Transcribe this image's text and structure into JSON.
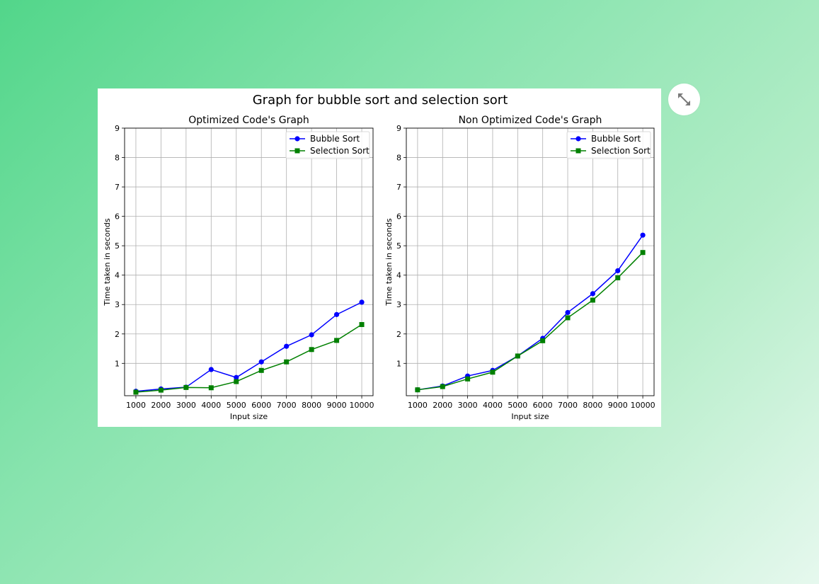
{
  "figure": {
    "suptitle": "Graph for bubble sort and selection sort"
  },
  "expand_button": {
    "icon": "expand-icon"
  },
  "colors": {
    "bubble": "#0000ff",
    "selection": "#008000",
    "grid": "#b0b0b0"
  },
  "chart_data": [
    {
      "type": "line",
      "title": "Optimized Code's Graph",
      "xlabel": "Input size",
      "ylabel": "Time taken in seconds",
      "x": [
        1000,
        2000,
        3000,
        4000,
        5000,
        6000,
        7000,
        8000,
        9000,
        10000
      ],
      "xticks": [
        "1000",
        "2000",
        "3000",
        "4000",
        "5000",
        "6000",
        "7000",
        "8000",
        "9000",
        "10000"
      ],
      "yticks": [
        "1",
        "2",
        "3",
        "4",
        "5",
        "6",
        "7",
        "8",
        "9"
      ],
      "ylim": [
        -0.1,
        9
      ],
      "grid": true,
      "legend": "top-right",
      "series": [
        {
          "name": "Bubble Sort",
          "marker": "circle",
          "values": [
            0.05,
            0.13,
            0.19,
            0.79,
            0.52,
            1.05,
            1.58,
            1.97,
            2.66,
            3.08
          ]
        },
        {
          "name": "Selection Sort",
          "marker": "square",
          "values": [
            0.02,
            0.09,
            0.18,
            0.17,
            0.38,
            0.76,
            1.05,
            1.47,
            1.78,
            2.32
          ]
        }
      ]
    },
    {
      "type": "line",
      "title": "Non Optimized Code's Graph",
      "xlabel": "Input size",
      "ylabel": "Time taken in seconds",
      "x": [
        1000,
        2000,
        3000,
        4000,
        5000,
        6000,
        7000,
        8000,
        9000,
        10000
      ],
      "xticks": [
        "1000",
        "2000",
        "3000",
        "4000",
        "5000",
        "6000",
        "7000",
        "8000",
        "9000",
        "10000"
      ],
      "yticks": [
        "1",
        "2",
        "3",
        "4",
        "5",
        "6",
        "7",
        "8",
        "9"
      ],
      "ylim": [
        -0.1,
        9
      ],
      "grid": true,
      "legend": "top-right",
      "series": [
        {
          "name": "Bubble Sort",
          "marker": "circle",
          "values": [
            0.1,
            0.23,
            0.57,
            0.76,
            1.25,
            1.85,
            2.73,
            3.37,
            4.15,
            5.36
          ]
        },
        {
          "name": "Selection Sort",
          "marker": "square",
          "values": [
            0.1,
            0.21,
            0.47,
            0.7,
            1.25,
            1.77,
            2.55,
            3.15,
            3.91,
            4.77
          ]
        }
      ]
    }
  ]
}
